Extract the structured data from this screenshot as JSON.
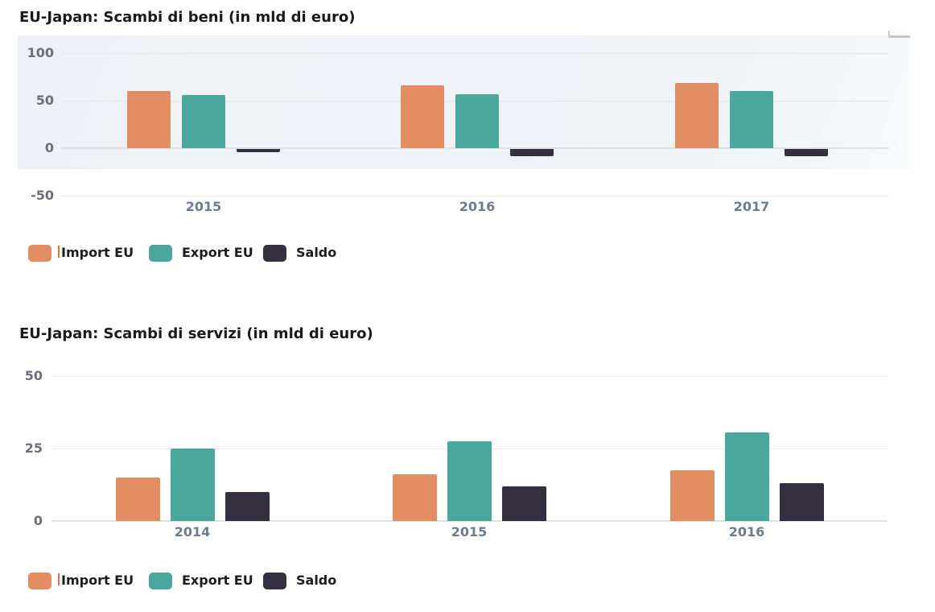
{
  "colors": {
    "import_eu": "#e28e62",
    "export_eu": "#4ba79c",
    "saldo": "#343040",
    "panel_background": "#eff3f6",
    "gridline": "#e3e7ea",
    "axis_tick_text": "#6b6f7a",
    "year_tick_text": "#6d7b8c",
    "title_text": "#1a1a1a",
    "legend_text": "#1d1d1d"
  },
  "chart_data": [
    {
      "type": "bar",
      "title": "EU-Japan: Scambi di beni (in mld di euro)",
      "categories": [
        "2015",
        "2016",
        "2017"
      ],
      "series": [
        {
          "name": "Import EU",
          "color": "#e28e62",
          "values": [
            60,
            66,
            69
          ]
        },
        {
          "name": "Export EU",
          "color": "#4ba79c",
          "values": [
            56,
            57,
            60
          ]
        },
        {
          "name": "Saldo",
          "color": "#343040",
          "values": [
            -3,
            -8,
            -8
          ]
        }
      ],
      "xlabel": "",
      "ylabel": "",
      "y_ticks": [
        100,
        50,
        0,
        -50
      ],
      "ylim": [
        -50,
        100
      ],
      "grid": true,
      "legend": [
        "Import EU",
        "Export EU",
        "Saldo"
      ],
      "legend_position": "bottom"
    },
    {
      "type": "bar",
      "title": "EU-Japan: Scambi di servizi (in mld di euro)",
      "categories": [
        "2014",
        "2015",
        "2016"
      ],
      "series": [
        {
          "name": "Import EU",
          "color": "#e28e62",
          "values": [
            15,
            16,
            17.5
          ]
        },
        {
          "name": "Export EU",
          "color": "#4ba79c",
          "values": [
            25,
            27.5,
            30.5
          ]
        },
        {
          "name": "Saldo",
          "color": "#343040",
          "values": [
            10,
            12,
            13
          ]
        }
      ],
      "xlabel": "",
      "ylabel": "",
      "y_ticks": [
        50,
        25,
        0
      ],
      "ylim": [
        0,
        50
      ],
      "grid": true,
      "legend": [
        "Import EU",
        "Export EU",
        "Saldo"
      ],
      "legend_position": "bottom"
    }
  ]
}
